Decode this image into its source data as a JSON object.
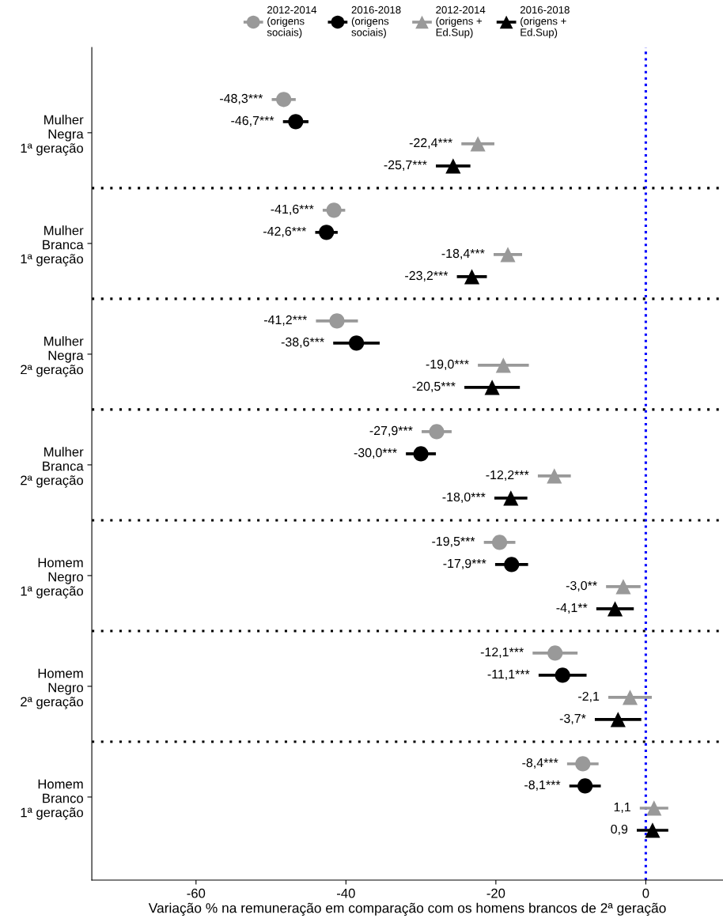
{
  "chart_data": {
    "type": "scatter",
    "orientation": "horizontal",
    "xlabel": "Variação % na remuneração em comparação com os homens brancos de 2ª geração",
    "categories": [
      "Mulher\nNegra\n1ª geração",
      "Mulher\nBranca\n1ª geração",
      "Mulher\nNegra\n2ª geração",
      "Mulher\nBranca\n2ª geração",
      "Homem\nNegro\n1ª geração",
      "Homem\nNegro\n2ª geração",
      "Homem\nBranco\n1ª geração"
    ],
    "series": [
      {
        "name": "2012-2014\n(origens\nsociais)",
        "color": "#999999",
        "marker": "circle",
        "values": [
          -48.3,
          -41.6,
          -41.2,
          -27.9,
          -19.5,
          -12.1,
          -8.4
        ],
        "errors": [
          1.6,
          1.5,
          2.8,
          2.0,
          2.1,
          3.0,
          2.1
        ],
        "value_labels": [
          "-48,3***",
          "-41,6***",
          "-41,2***",
          "-27,9***",
          "-19,5***",
          "-12,1***",
          "-8,4***"
        ]
      },
      {
        "name": "2016-2018\n(origens\nsociais)",
        "color": "#000000",
        "marker": "circle",
        "values": [
          -46.7,
          -42.6,
          -38.6,
          -30.0,
          -17.9,
          -11.1,
          -8.1
        ],
        "errors": [
          1.7,
          1.5,
          3.1,
          2.0,
          2.2,
          3.2,
          2.1
        ],
        "value_labels": [
          "-46,7***",
          "-42,6***",
          "-38,6***",
          "-30,0***",
          "-17,9***",
          "-11,1***",
          "-8,1***"
        ]
      },
      {
        "name": "2012-2014\n(origens +\nEd.Sup)",
        "color": "#999999",
        "marker": "triangle",
        "values": [
          -22.4,
          -18.4,
          -19.0,
          -12.2,
          -3.0,
          -2.1,
          1.1
        ],
        "errors": [
          2.2,
          1.9,
          3.4,
          2.2,
          2.3,
          2.9,
          1.9
        ],
        "value_labels": [
          "-22,4***",
          "-18,4***",
          "-19,0***",
          "-12,2***",
          "-3,0**",
          "-2,1",
          "1,1"
        ]
      },
      {
        "name": "2016-2018\n(origens +\nEd.Sup)",
        "color": "#000000",
        "marker": "triangle",
        "values": [
          -25.7,
          -23.2,
          -20.5,
          -18.0,
          -4.1,
          -3.7,
          0.9
        ],
        "errors": [
          2.3,
          2.0,
          3.7,
          2.2,
          2.5,
          3.1,
          2.1
        ],
        "value_labels": [
          "-25,7***",
          "-23,2***",
          "-20,5***",
          "-18,0***",
          "-4,1**",
          "-3,7*",
          "0,9"
        ]
      }
    ],
    "xlim": [
      -73.9,
      10.3
    ],
    "xticks": [
      -60,
      -40,
      -20,
      0
    ],
    "ref_lines": [
      {
        "axis": "x",
        "value": 0,
        "color": "#0000ff",
        "line_style": "dotted"
      }
    ],
    "grid": false,
    "legend": "top"
  }
}
